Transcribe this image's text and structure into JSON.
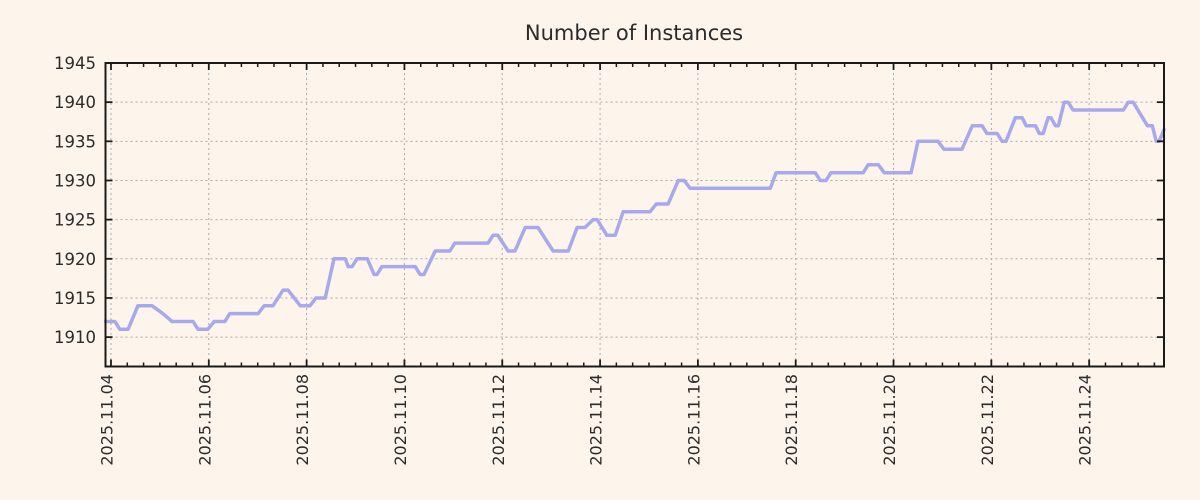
{
  "chart_data": {
    "type": "line",
    "title": "Number of Instances",
    "xlabel": "",
    "ylabel": "",
    "grid": true,
    "legend": null,
    "x_axis": {
      "unit": "days since 2025-11-04 00:00",
      "lim": [
        -0.112,
        21.53
      ],
      "major_tick_days": [
        0,
        2,
        4,
        6,
        8,
        10,
        12,
        14,
        16,
        18,
        20
      ],
      "major_tick_labels": [
        "2025.11.04",
        "2025.11.06",
        "2025.11.08",
        "2025.11.10",
        "2025.11.12",
        "2025.11.14",
        "2025.11.16",
        "2025.11.18",
        "2025.11.20",
        "2025.11.22",
        "2025.11.24"
      ],
      "minor_ticks_per_day": 3
    },
    "y_axis": {
      "lim": [
        1906.25,
        1945
      ],
      "major_ticks": [
        1910,
        1915,
        1920,
        1925,
        1930,
        1935,
        1940,
        1945
      ],
      "major_tick_labels": [
        "1910",
        "1915",
        "1920",
        "1925",
        "1930",
        "1935",
        "1940",
        "1945"
      ]
    },
    "series": [
      {
        "name": "instances",
        "color": "#a8a8ec",
        "points": [
          [
            -0.11,
            1912
          ],
          [
            0.08,
            1912
          ],
          [
            0.18,
            1911
          ],
          [
            0.35,
            1911
          ],
          [
            0.55,
            1914
          ],
          [
            0.84,
            1914
          ],
          [
            1.06,
            1913
          ],
          [
            1.25,
            1912
          ],
          [
            1.68,
            1912
          ],
          [
            1.78,
            1911
          ],
          [
            1.98,
            1911
          ],
          [
            2.11,
            1912
          ],
          [
            2.33,
            1912
          ],
          [
            2.43,
            1913
          ],
          [
            3.01,
            1913
          ],
          [
            3.13,
            1914
          ],
          [
            3.31,
            1914
          ],
          [
            3.52,
            1916
          ],
          [
            3.62,
            1916
          ],
          [
            3.87,
            1914
          ],
          [
            4.07,
            1914
          ],
          [
            4.19,
            1915
          ],
          [
            4.38,
            1915
          ],
          [
            4.56,
            1920
          ],
          [
            4.79,
            1920
          ],
          [
            4.85,
            1919
          ],
          [
            4.93,
            1919
          ],
          [
            5.03,
            1920
          ],
          [
            5.24,
            1920
          ],
          [
            5.38,
            1918
          ],
          [
            5.44,
            1918
          ],
          [
            5.54,
            1919
          ],
          [
            6.22,
            1919
          ],
          [
            6.32,
            1918
          ],
          [
            6.4,
            1918
          ],
          [
            6.63,
            1921
          ],
          [
            6.93,
            1921
          ],
          [
            7.03,
            1922
          ],
          [
            7.71,
            1922
          ],
          [
            7.81,
            1923
          ],
          [
            7.91,
            1923
          ],
          [
            8.12,
            1921
          ],
          [
            8.26,
            1921
          ],
          [
            8.47,
            1924
          ],
          [
            8.73,
            1924
          ],
          [
            9.04,
            1921
          ],
          [
            9.35,
            1921
          ],
          [
            9.53,
            1924
          ],
          [
            9.69,
            1924
          ],
          [
            9.86,
            1925
          ],
          [
            9.94,
            1925
          ],
          [
            10.14,
            1923
          ],
          [
            10.31,
            1923
          ],
          [
            10.47,
            1926
          ],
          [
            11.02,
            1926
          ],
          [
            11.15,
            1927
          ],
          [
            11.39,
            1927
          ],
          [
            11.6,
            1930
          ],
          [
            11.72,
            1930
          ],
          [
            11.84,
            1929
          ],
          [
            13.48,
            1929
          ],
          [
            13.6,
            1931
          ],
          [
            14.4,
            1931
          ],
          [
            14.5,
            1930
          ],
          [
            14.62,
            1930
          ],
          [
            14.72,
            1931
          ],
          [
            15.38,
            1931
          ],
          [
            15.48,
            1932
          ],
          [
            15.69,
            1932
          ],
          [
            15.81,
            1931
          ],
          [
            16.36,
            1931
          ],
          [
            16.5,
            1935
          ],
          [
            16.91,
            1935
          ],
          [
            17.03,
            1934
          ],
          [
            17.4,
            1934
          ],
          [
            17.61,
            1937
          ],
          [
            17.81,
            1937
          ],
          [
            17.91,
            1936
          ],
          [
            18.12,
            1936
          ],
          [
            18.22,
            1935
          ],
          [
            18.3,
            1935
          ],
          [
            18.49,
            1938
          ],
          [
            18.63,
            1938
          ],
          [
            18.71,
            1937
          ],
          [
            18.9,
            1937
          ],
          [
            18.98,
            1936
          ],
          [
            19.06,
            1936
          ],
          [
            19.16,
            1938
          ],
          [
            19.22,
            1938
          ],
          [
            19.31,
            1937
          ],
          [
            19.37,
            1937
          ],
          [
            19.49,
            1940
          ],
          [
            19.57,
            1940
          ],
          [
            19.67,
            1939
          ],
          [
            20.7,
            1939
          ],
          [
            20.8,
            1940
          ],
          [
            20.9,
            1940
          ],
          [
            21.19,
            1937
          ],
          [
            21.29,
            1937
          ],
          [
            21.37,
            1935
          ],
          [
            21.43,
            1935
          ],
          [
            21.53,
            1936.5
          ]
        ]
      }
    ]
  },
  "colors": {
    "background": "#fdf5ec",
    "grid": "#a9a9a9",
    "axis": "#1a1a1a",
    "text": "#2b2b2b",
    "line": "#a8a8ec"
  }
}
